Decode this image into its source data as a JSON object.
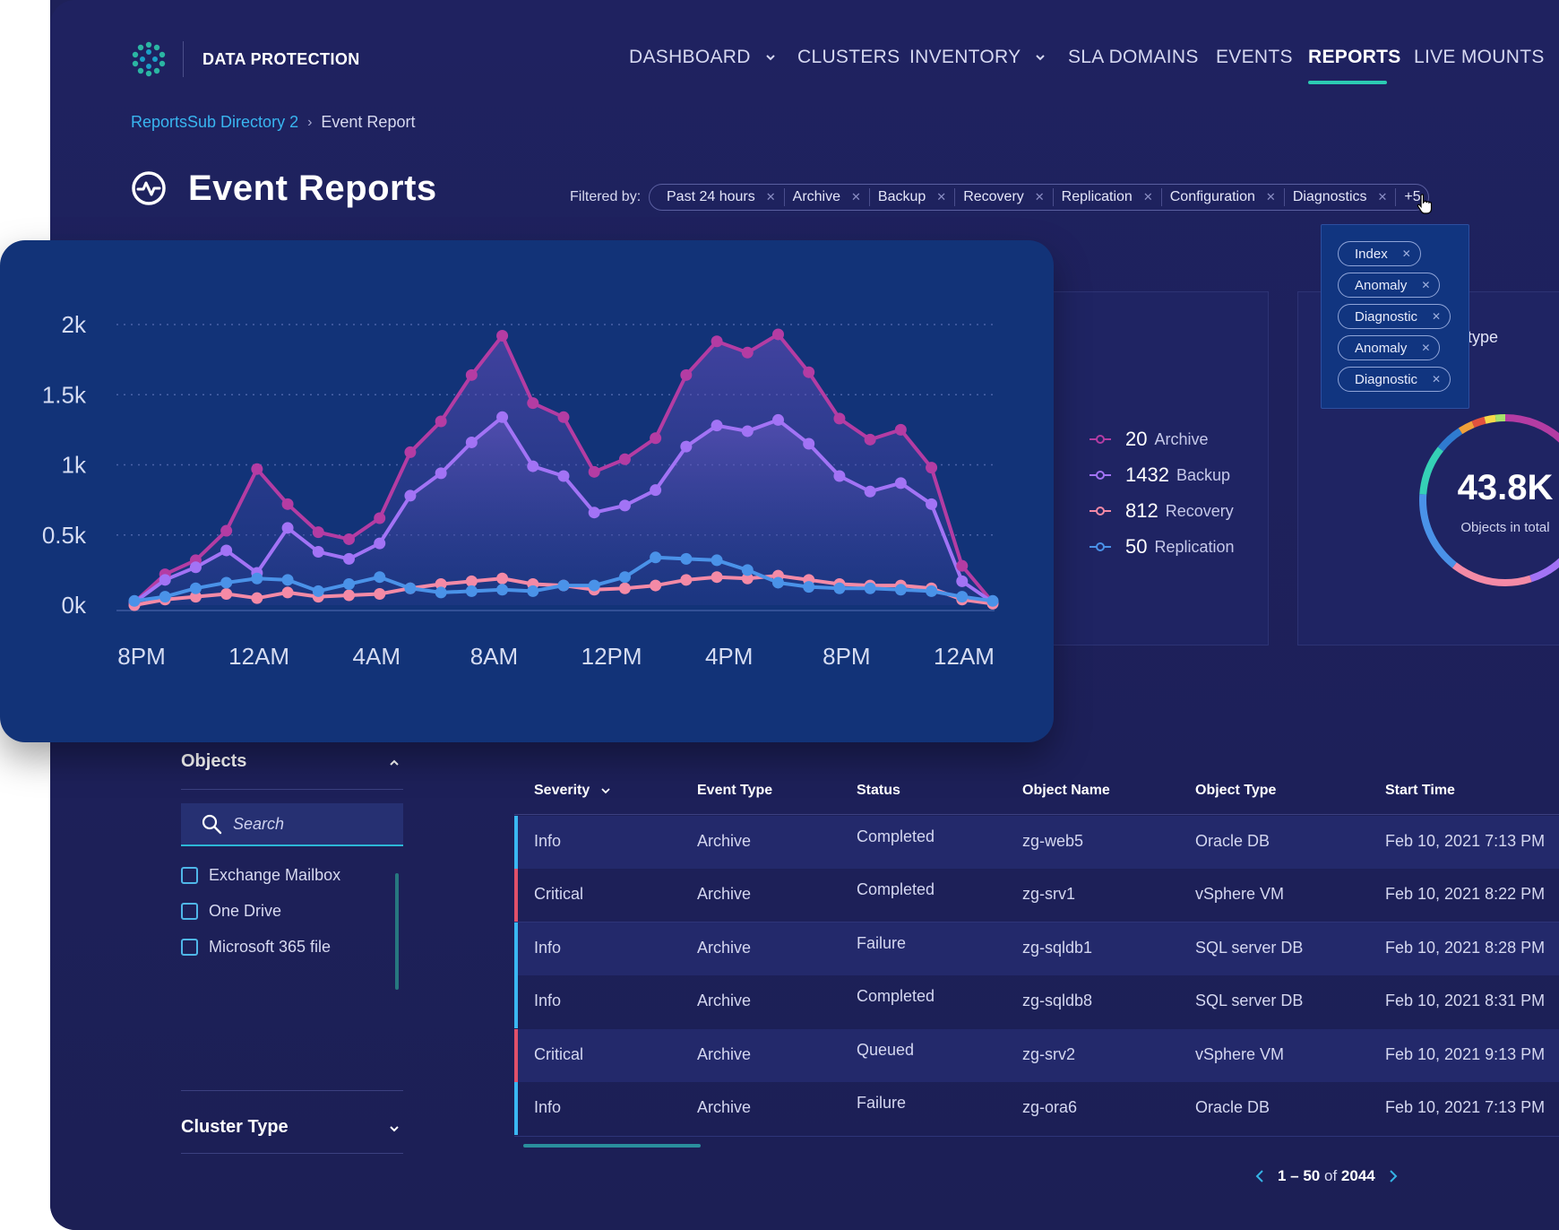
{
  "header": {
    "brand": "DATA PROTECTION",
    "nav": [
      {
        "label": "DASHBOARD"
      },
      {
        "label": "CLUSTERS"
      },
      {
        "label": "INVENTORY"
      },
      {
        "label": "SLA DOMAINS"
      },
      {
        "label": "EVENTS"
      },
      {
        "label": "REPORTS"
      },
      {
        "label": "LIVE MOUNTS"
      }
    ]
  },
  "breadcrumb": {
    "parent": "ReportsSub Directory 2",
    "current": "Event Report"
  },
  "page": {
    "title": "Event Reports"
  },
  "filters": {
    "label": "Filtered by:",
    "chips": [
      "Past 24 hours",
      "Archive",
      "Backup",
      "Recovery",
      "Replication",
      "Configuration",
      "Diagnostics"
    ],
    "more": "+5",
    "overflow": [
      "Index",
      "Anomaly",
      "Diagnostic",
      "Anomaly",
      "Diagnostic"
    ]
  },
  "summary": {
    "legend": [
      {
        "count": "20",
        "label": "Archive"
      },
      {
        "count": "1432",
        "label": "Backup"
      },
      {
        "count": "812",
        "label": "Recovery"
      },
      {
        "count": "50",
        "label": "Replication"
      }
    ],
    "type_label": "type",
    "total_value": "43.8K",
    "total_label": "Objects in total"
  },
  "colors": {
    "archive": "#b43ca3",
    "backup": "#a273f5",
    "recovery": "#f48aa6",
    "replication": "#4a92e8",
    "accent": "#2ccbb3"
  },
  "chart_data": {
    "type": "line",
    "y_ticks": [
      "2k",
      "1.5k",
      "1k",
      "0.5k",
      "0k"
    ],
    "ylim": [
      0,
      2000
    ],
    "x_ticks": [
      "8PM",
      "12AM",
      "4AM",
      "8AM",
      "12PM",
      "4PM",
      "8PM",
      "12AM"
    ],
    "points_count": 29,
    "series": [
      {
        "name": "Archive",
        "values": [
          20,
          220,
          320,
          530,
          970,
          720,
          520,
          470,
          620,
          1090,
          1310,
          1640,
          1920,
          1440,
          1340,
          950,
          1040,
          1190,
          1640,
          1880,
          1800,
          1930,
          1660,
          1330,
          1180,
          1250,
          980,
          280,
          20
        ]
      },
      {
        "name": "Backup",
        "values": [
          20,
          180,
          270,
          390,
          230,
          550,
          380,
          330,
          440,
          780,
          940,
          1160,
          1340,
          990,
          920,
          660,
          710,
          820,
          1130,
          1280,
          1240,
          1320,
          1150,
          920,
          810,
          870,
          720,
          170,
          20
        ]
      },
      {
        "name": "Recovery",
        "values": [
          0,
          40,
          60,
          80,
          50,
          90,
          60,
          70,
          80,
          120,
          150,
          170,
          190,
          150,
          140,
          110,
          120,
          140,
          180,
          200,
          190,
          210,
          180,
          150,
          140,
          140,
          120,
          40,
          10
        ]
      },
      {
        "name": "Replication",
        "values": [
          30,
          60,
          120,
          160,
          190,
          180,
          100,
          150,
          200,
          120,
          90,
          100,
          110,
          100,
          140,
          140,
          200,
          340,
          330,
          320,
          250,
          160,
          130,
          120,
          120,
          110,
          100,
          60,
          30
        ]
      }
    ]
  },
  "sidebar": {
    "objects_title": "Objects",
    "search_placeholder": "Search",
    "options": [
      "Exchange Mailbox",
      "One Drive",
      "Microsoft 365 file"
    ],
    "cluster_title": "Cluster Type"
  },
  "table": {
    "columns": [
      "Severity",
      "Event Type",
      "Status",
      "Object Name",
      "Object Type",
      "Start Time"
    ],
    "rows": [
      {
        "severity": "Info",
        "event": "Archive",
        "status": "Completed",
        "object": "zg-web5",
        "type": "Oracle DB",
        "start": "Feb 10, 2021 7:13 PM"
      },
      {
        "severity": "Critical",
        "event": "Archive",
        "status": "Completed",
        "object": "zg-srv1",
        "type": "vSphere VM",
        "start": "Feb 10, 2021 8:22 PM"
      },
      {
        "severity": "Info",
        "event": "Archive",
        "status": "Failure",
        "object": "zg-sqldb1",
        "type": "SQL server DB",
        "start": "Feb 10, 2021 8:28 PM"
      },
      {
        "severity": "Info",
        "event": "Archive",
        "status": "Completed",
        "object": "zg-sqldb8",
        "type": "SQL server DB",
        "start": "Feb 10, 2021 8:31 PM"
      },
      {
        "severity": "Critical",
        "event": "Archive",
        "status": "Queued",
        "object": "zg-srv2",
        "type": "vSphere VM",
        "start": "Feb 10, 2021 9:13 PM"
      },
      {
        "severity": "Info",
        "event": "Archive",
        "status": "Failure",
        "object": "zg-ora6",
        "type": "Oracle DB",
        "start": "Feb 10, 2021 7:13 PM"
      }
    ],
    "pager": {
      "range": "1 – 50",
      "of": "of",
      "total": "2044"
    }
  }
}
